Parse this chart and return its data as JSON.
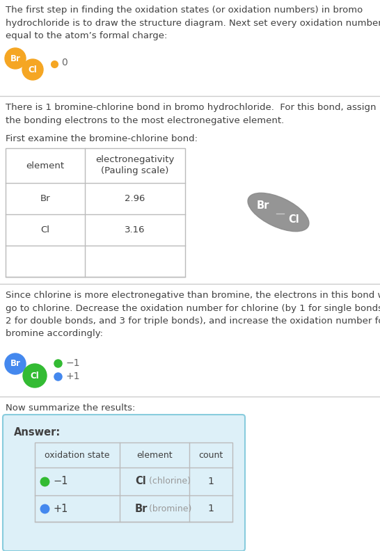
{
  "bg_color": "#ffffff",
  "text_color": "#404040",
  "para1": "The first step in finding the oxidation states (or oxidation numbers) in bromo\nhydrochloride is to draw the structure diagram. Next set every oxidation number\nequal to the atom’s formal charge:",
  "para2": "There is 1 bromine-chlorine bond in bromo hydrochloride.  For this bond, assign\nthe bonding electrons to the most electronegative element.",
  "para3": "First examine the bromine-chlorine bond:",
  "para4": "Since chlorine is more electronegative than bromine, the electrons in this bond will\ngo to chlorine. Decrease the oxidation number for chlorine (by 1 for single bonds,\n2 for double bonds, and 3 for triple bonds), and increase the oxidation number for\nbromine accordingly:",
  "para5": "Now summarize the results:",
  "answer_label": "Answer:",
  "atom_color_orange": "#f5a623",
  "atom_color_gray": "#8a8a8a",
  "atom_color_green": "#33bb33",
  "atom_color_blue": "#4488ee",
  "dot_color_orange": "#f5a623",
  "answer_box_color": "#ddf0f8",
  "answer_box_border": "#88ccdd",
  "divider_color": "#cccccc",
  "table_border": "#bbbbbb"
}
